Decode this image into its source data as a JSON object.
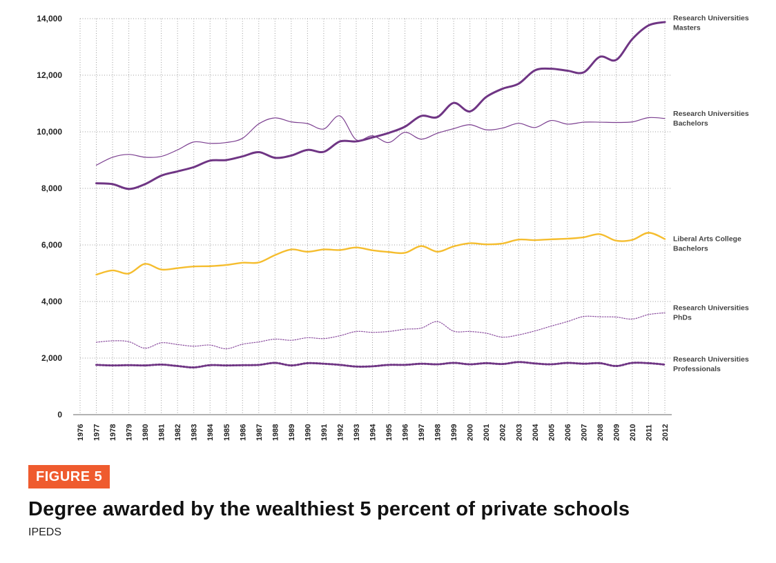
{
  "chart_data": {
    "type": "line",
    "title": "",
    "xlabel": "",
    "ylabel": "",
    "ylim": [
      0,
      14000
    ],
    "yticks": [
      0,
      2000,
      4000,
      6000,
      8000,
      10000,
      12000,
      14000
    ],
    "ytick_labels": [
      "0",
      "2,000",
      "4,000",
      "6,000",
      "8,000",
      "10,000",
      "12,000",
      "14,000"
    ],
    "x": [
      1976,
      1977,
      1978,
      1979,
      1980,
      1981,
      1982,
      1983,
      1984,
      1985,
      1986,
      1987,
      1988,
      1989,
      1990,
      1991,
      1992,
      1993,
      1994,
      1995,
      1996,
      1997,
      1998,
      1999,
      2000,
      2001,
      2002,
      2003,
      2004,
      2005,
      2006,
      2007,
      2008,
      2009,
      2010,
      2011,
      2012
    ],
    "x_labels": [
      "1976",
      "1977",
      "1978",
      "1979",
      "1980",
      "1981",
      "1982",
      "1983",
      "1984",
      "1985",
      "1986",
      "1987",
      "1988",
      "1989",
      "1990",
      "1991",
      "1992",
      "1993",
      "1994",
      "1995",
      "1996",
      "1997",
      "1998",
      "1999",
      "2000",
      "2001",
      "2002",
      "2003",
      "2004",
      "2005",
      "2006",
      "2007",
      "2008",
      "2009",
      "2010",
      "2011",
      "2012"
    ],
    "grid": true,
    "legend": "right",
    "series": [
      {
        "name": "Research Universities Masters",
        "label_lines": [
          "Research Universities",
          "Masters"
        ],
        "color": "#6f3584",
        "style": "thick",
        "values": [
          null,
          8180,
          8150,
          7980,
          8150,
          8450,
          8600,
          8750,
          8980,
          9000,
          9130,
          9280,
          9080,
          9160,
          9360,
          9290,
          9660,
          9660,
          9800,
          9960,
          10180,
          10560,
          10520,
          11020,
          10720,
          11230,
          11520,
          11700,
          12170,
          12230,
          12160,
          12100,
          12650,
          12540,
          13280,
          13760,
          13880
        ]
      },
      {
        "name": "Research Universities Bachelors",
        "label_lines": [
          "Research Universities",
          "Bachelors"
        ],
        "color": "#7a3d8f",
        "style": "thin",
        "values": [
          null,
          8820,
          9100,
          9200,
          9100,
          9130,
          9360,
          9640,
          9590,
          9620,
          9770,
          10280,
          10490,
          10350,
          10290,
          10100,
          10560,
          9720,
          9860,
          9620,
          9980,
          9740,
          9950,
          10110,
          10250,
          10070,
          10130,
          10300,
          10150,
          10400,
          10270,
          10340,
          10340,
          10330,
          10350,
          10500,
          10470
        ]
      },
      {
        "name": "Liberal Arts College Bachelors",
        "label_lines": [
          "Liberal Arts College",
          "Bachelors"
        ],
        "color": "#f5bd2e",
        "style": "medium",
        "values": [
          null,
          4950,
          5100,
          4990,
          5330,
          5130,
          5180,
          5240,
          5250,
          5290,
          5370,
          5380,
          5640,
          5840,
          5760,
          5840,
          5820,
          5910,
          5810,
          5750,
          5720,
          5960,
          5760,
          5950,
          6060,
          6020,
          6050,
          6190,
          6170,
          6200,
          6220,
          6270,
          6380,
          6150,
          6180,
          6430,
          6210
        ]
      },
      {
        "name": "Research Universities PhDs",
        "label_lines": [
          "Research Universities",
          "PhDs"
        ],
        "color": "#8a4c9e",
        "style": "dotted-thin",
        "values": [
          null,
          2560,
          2610,
          2580,
          2350,
          2540,
          2480,
          2420,
          2460,
          2330,
          2490,
          2570,
          2670,
          2630,
          2720,
          2690,
          2790,
          2940,
          2910,
          2940,
          3020,
          3060,
          3290,
          2950,
          2940,
          2880,
          2740,
          2820,
          2960,
          3130,
          3290,
          3470,
          3460,
          3450,
          3380,
          3540,
          3600
        ]
      },
      {
        "name": "Research Universities Professionals",
        "label_lines": [
          "Research Universities",
          "Professionals"
        ],
        "color": "#6f3584",
        "style": "dotted-thick",
        "values": [
          null,
          1760,
          1740,
          1750,
          1740,
          1770,
          1720,
          1670,
          1750,
          1740,
          1750,
          1760,
          1830,
          1740,
          1820,
          1800,
          1760,
          1700,
          1710,
          1760,
          1760,
          1800,
          1780,
          1830,
          1780,
          1820,
          1790,
          1860,
          1810,
          1780,
          1830,
          1800,
          1820,
          1720,
          1830,
          1820,
          1770
        ]
      }
    ]
  },
  "caption": {
    "figure_label": "FIGURE 5",
    "title": "Degree awarded by the wealthiest 5 percent of private schools",
    "source": "IPEDS"
  }
}
